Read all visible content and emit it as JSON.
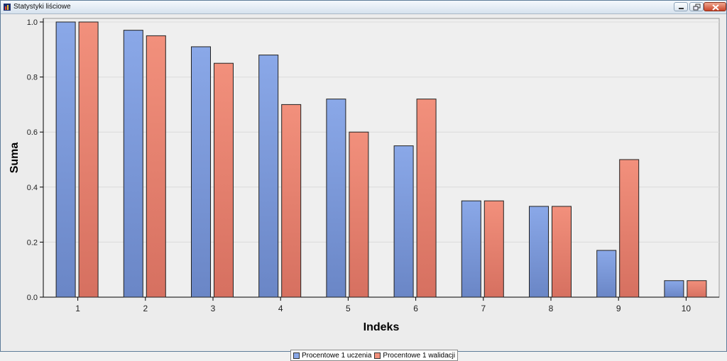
{
  "window": {
    "title": "Statystyki liściowe",
    "buttons": [
      "minimize",
      "restore",
      "close"
    ]
  },
  "colors": {
    "series1": "#8aa8e8",
    "series1_dark": "#6a86c6",
    "series2": "#f2907c",
    "series2_dark": "#d67060",
    "plot_bg": "#efefef",
    "grid": "#dcdcdc"
  },
  "chart_data": {
    "type": "bar",
    "categories": [
      "1",
      "2",
      "3",
      "4",
      "5",
      "6",
      "7",
      "8",
      "9",
      "10"
    ],
    "series": [
      {
        "name": "Procentowe 1 uczenia",
        "values": [
          1.0,
          0.97,
          0.91,
          0.88,
          0.72,
          0.55,
          0.35,
          0.33,
          0.17,
          0.06
        ]
      },
      {
        "name": "Procentowe 1 walidacji",
        "values": [
          1.0,
          0.95,
          0.85,
          0.7,
          0.6,
          0.72,
          0.35,
          0.33,
          0.5,
          0.06
        ]
      }
    ],
    "xlabel": "Indeks",
    "ylabel": "Suma",
    "ylim": [
      0,
      1.0
    ],
    "yticks": [
      "0.0",
      "0.2",
      "0.4",
      "0.6",
      "0.8",
      "1.0"
    ],
    "grid": true,
    "legend_position": "bottom-center"
  }
}
